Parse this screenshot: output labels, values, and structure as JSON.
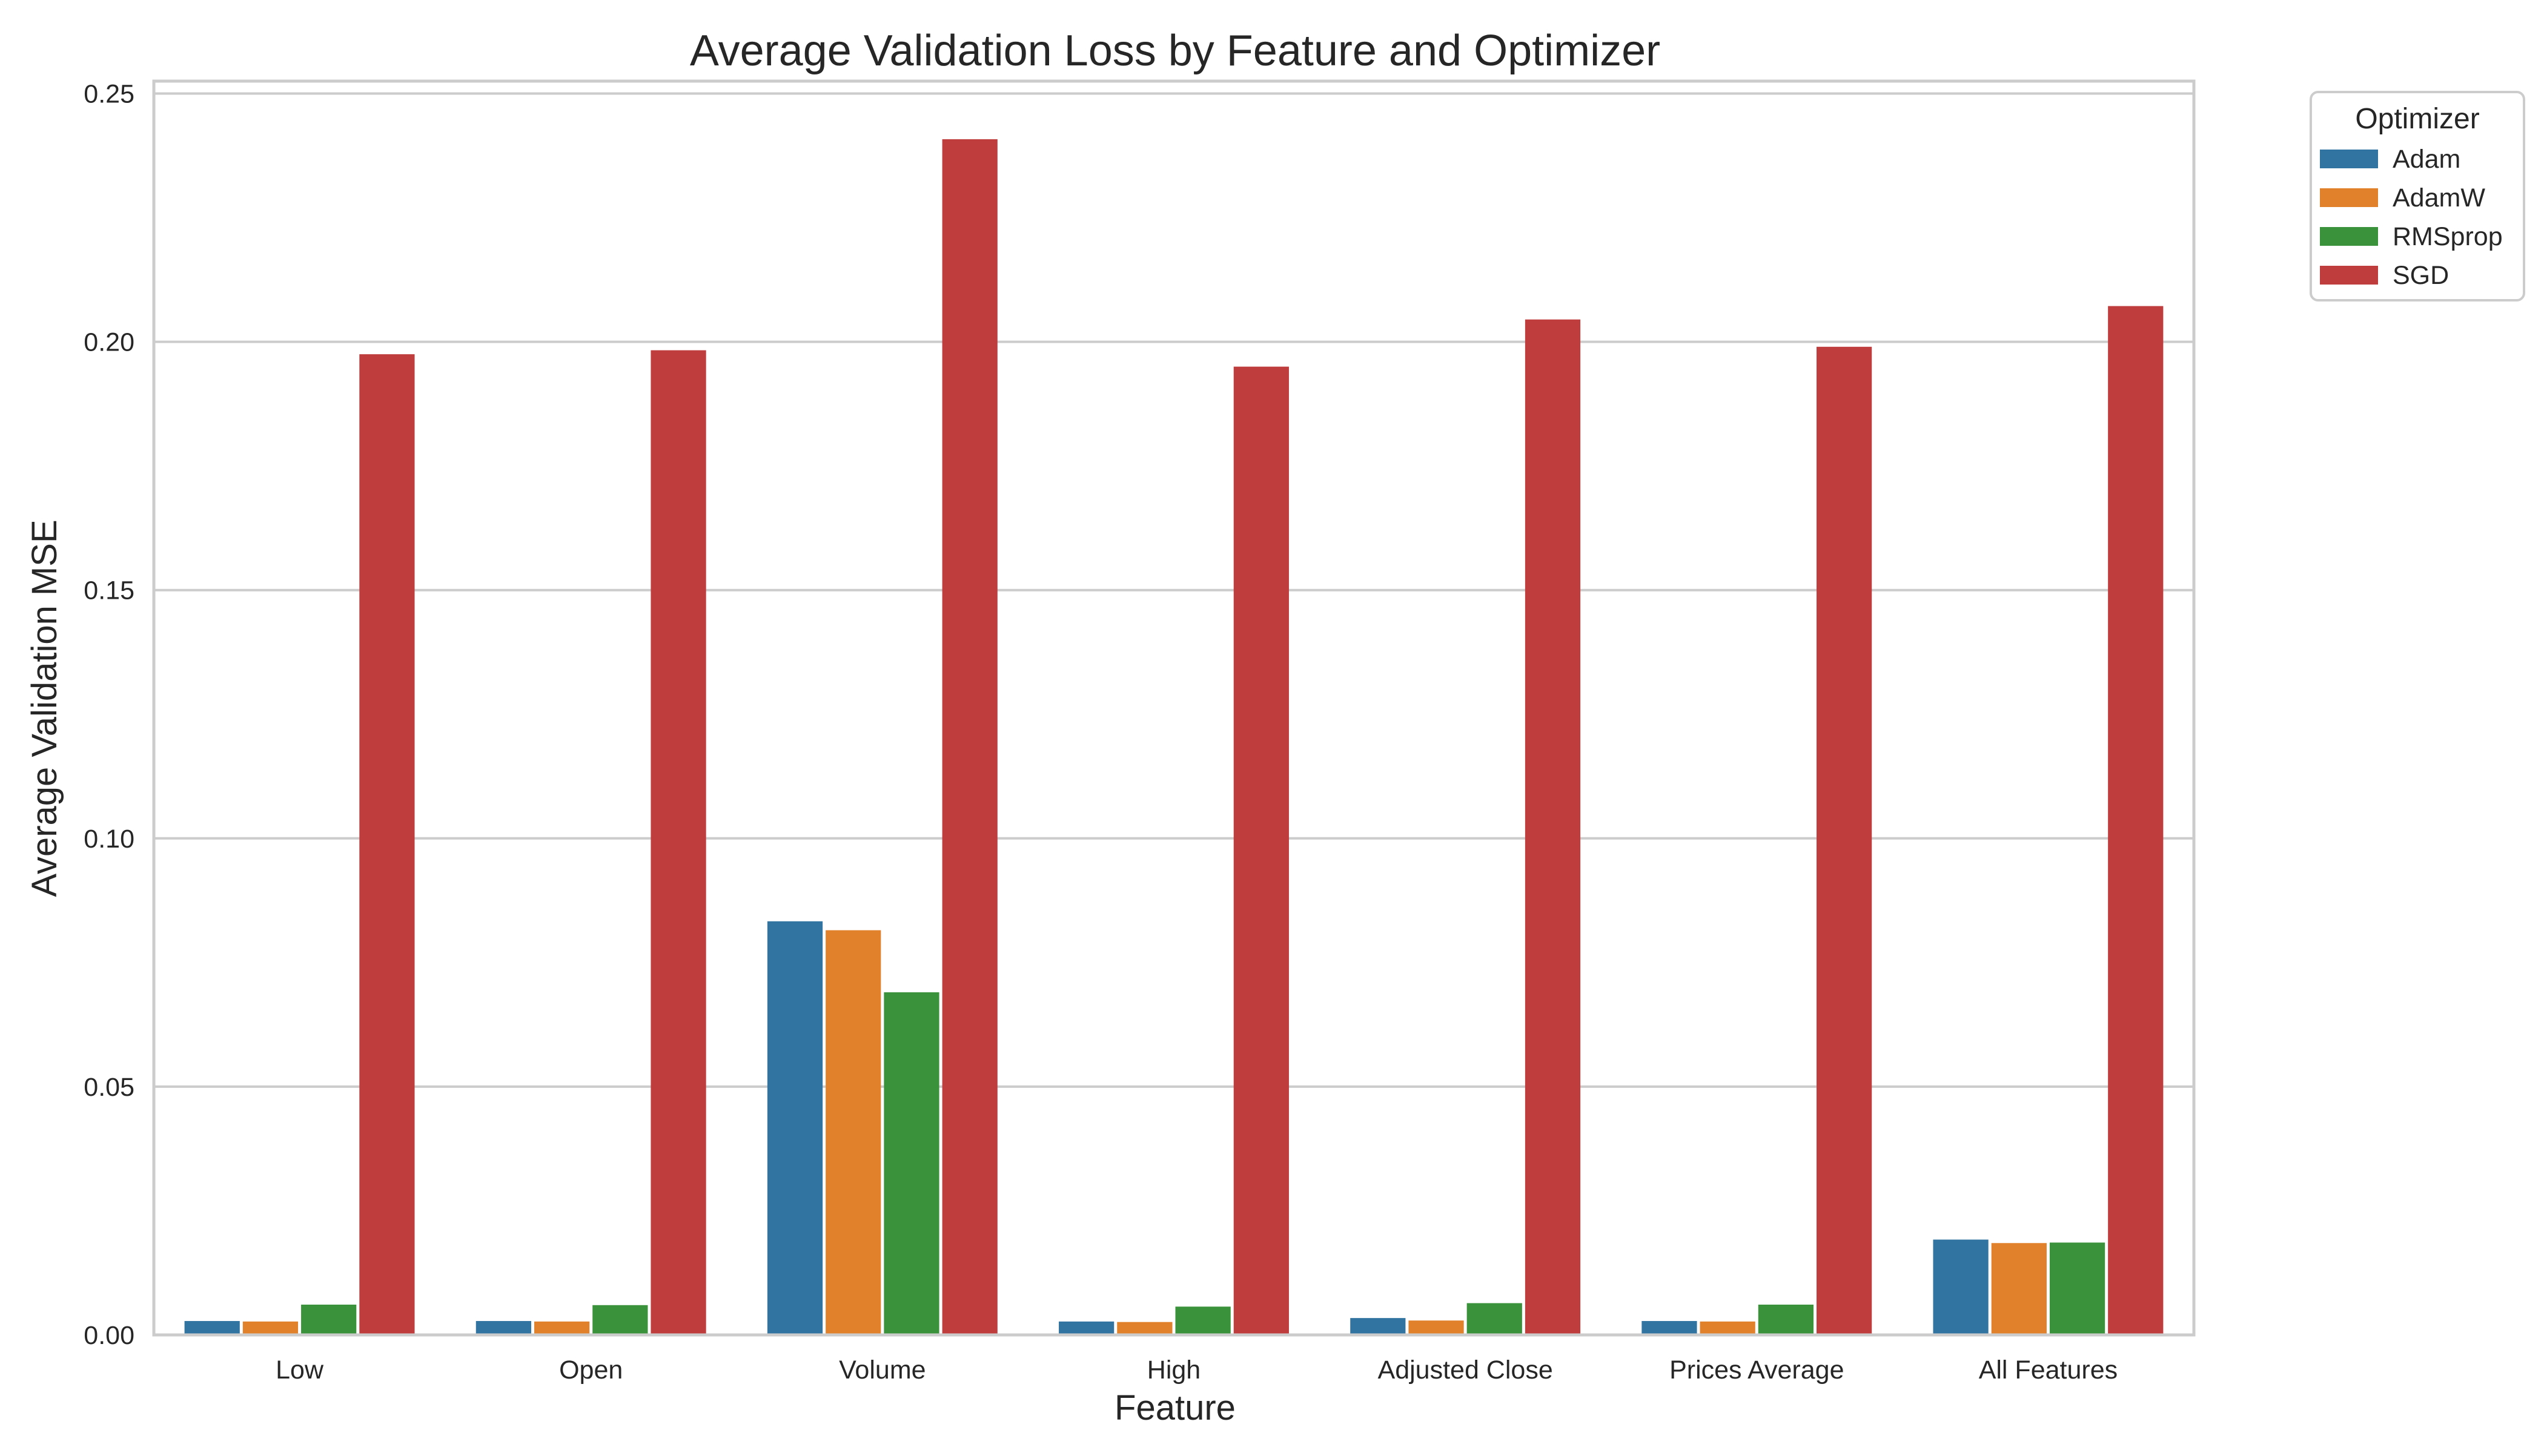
{
  "chart_data": {
    "type": "bar",
    "title": "Average Validation Loss by Feature and Optimizer",
    "xlabel": "Feature",
    "ylabel": "Average Validation MSE",
    "categories": [
      "Low",
      "Open",
      "Volume",
      "High",
      "Adjusted Close",
      "Prices Average",
      "All Features"
    ],
    "series": [
      {
        "name": "Adam",
        "color": "#3274a1",
        "values": [
          0.0028,
          0.0028,
          0.0833,
          0.0027,
          0.0034,
          0.0028,
          0.0192
        ]
      },
      {
        "name": "AdamW",
        "color": "#e1812c",
        "values": [
          0.0027,
          0.0027,
          0.0815,
          0.0026,
          0.0029,
          0.0027,
          0.0185
        ]
      },
      {
        "name": "RMSprop",
        "color": "#3a923a",
        "values": [
          0.0061,
          0.006,
          0.069,
          0.0057,
          0.0064,
          0.0061,
          0.0186
        ]
      },
      {
        "name": "SGD",
        "color": "#c03d3e",
        "values": [
          0.1975,
          0.1983,
          0.2408,
          0.195,
          0.2045,
          0.199,
          0.2072
        ]
      }
    ],
    "ylim": [
      0,
      0.2525
    ],
    "yticks": [
      "0.00",
      "0.05",
      "0.10",
      "0.15",
      "0.20",
      "0.25"
    ],
    "grid": true,
    "legend": {
      "title": "Optimizer",
      "placement": "upper-right-outside"
    }
  }
}
